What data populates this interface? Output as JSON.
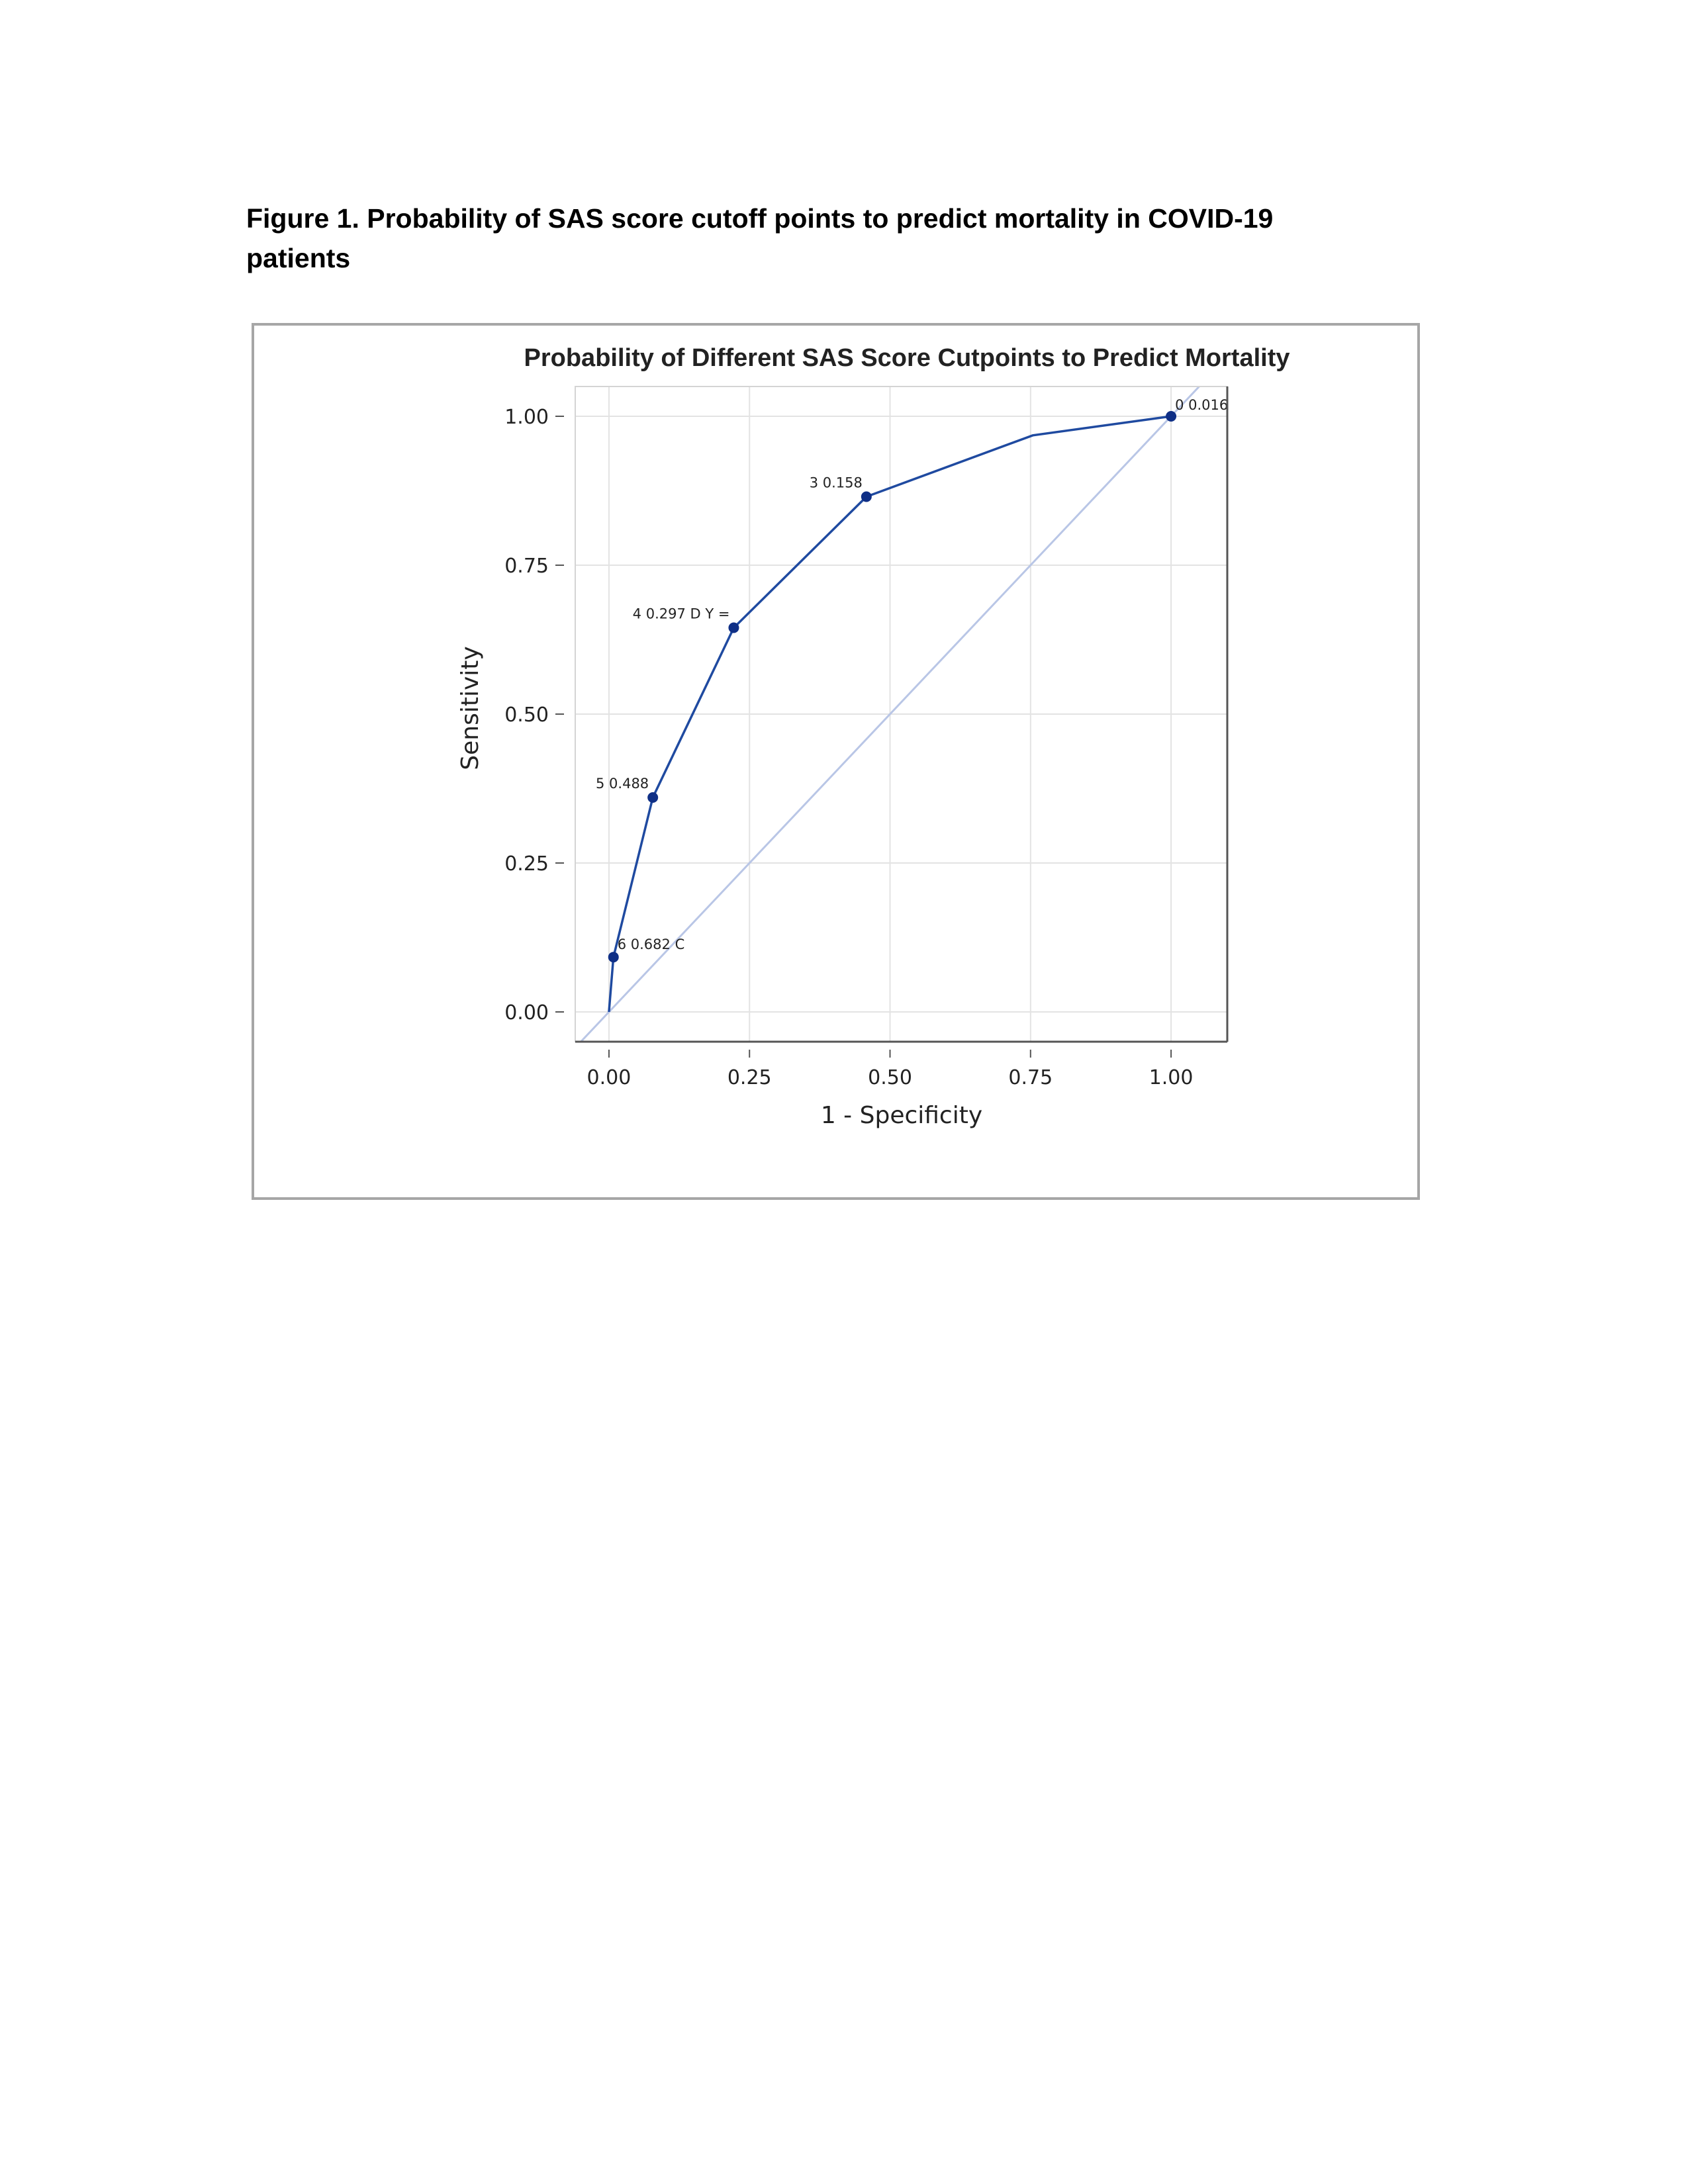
{
  "caption": {
    "line1": "Figure 1. Probability of SAS score cutoff points to predict mortality in COVID-19",
    "line2": "patients"
  },
  "chart_data": {
    "type": "line",
    "title": "Probability of Different SAS Score Cutpoints to Predict Mortality",
    "xlabel": "1 - Specificity",
    "ylabel": "Sensitivity",
    "xlim": [
      -0.06,
      1.1
    ],
    "ylim": [
      -0.05,
      1.05
    ],
    "xticks": [
      0.0,
      0.25,
      0.5,
      0.75,
      1.0
    ],
    "xtick_labels": [
      "0.00",
      "0.25",
      "0.50",
      "0.75",
      "1.00"
    ],
    "yticks": [
      0.0,
      0.25,
      0.5,
      0.75,
      1.0
    ],
    "ytick_labels": [
      "0.00",
      "0.25",
      "0.50",
      "0.75",
      "1.00"
    ],
    "grid": true,
    "series": [
      {
        "x": [
          0.0,
          0.008,
          0.078,
          0.222,
          0.458,
          0.754,
          1.0
        ],
        "y": [
          0.0,
          0.092,
          0.36,
          0.645,
          0.865,
          0.968,
          1.0
        ],
        "color": "#1f4aa0"
      }
    ],
    "reference_line": {
      "x": [
        -0.06,
        1.1
      ],
      "y": [
        -0.06,
        1.1
      ],
      "color": "#b9c6e6"
    },
    "point_labels": [
      {
        "x": 0.008,
        "y": 0.092,
        "text": "6 0.682 C"
      },
      {
        "x": 0.078,
        "y": 0.36,
        "text": "5 0.488"
      },
      {
        "x": 0.222,
        "y": 0.645,
        "text": "4 0.297  D Y ="
      },
      {
        "x": 0.458,
        "y": 0.865,
        "text": "3 0.158"
      },
      {
        "x": 1.0,
        "y": 1.0,
        "text": "0 0.016"
      }
    ]
  }
}
